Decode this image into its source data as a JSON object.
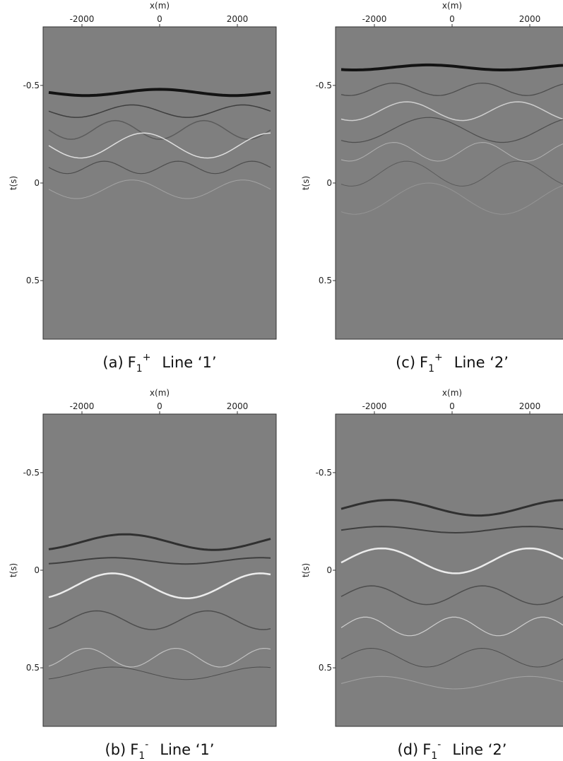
{
  "panels": [
    {
      "caption": {
        "label": "(a)",
        "symbol": "F",
        "subscript": "1",
        "superscript": "+",
        "line": "Line ‘1’"
      },
      "x_label": "x(m)",
      "y_label": "t(s)",
      "xlim": [
        -3000,
        3000
      ],
      "ylim": [
        -0.8,
        0.8
      ],
      "xticks": [
        -2000,
        0,
        2000
      ],
      "yticks": [
        -0.5,
        0,
        0.5
      ]
    },
    {
      "caption": {
        "label": "(c)",
        "symbol": "F",
        "subscript": "1",
        "superscript": "+",
        "line": "Line ‘2’"
      },
      "x_label": "x(m)",
      "y_label": "t(s)",
      "xlim": [
        -3000,
        3000
      ],
      "ylim": [
        -0.8,
        0.8
      ],
      "xticks": [
        -2000,
        0,
        2000
      ],
      "yticks": [
        -0.5,
        0,
        0.5
      ]
    },
    {
      "caption": {
        "label": "(b)",
        "symbol": "F",
        "subscript": "1",
        "superscript": "-",
        "line": "Line ‘1’"
      },
      "x_label": "x(m)",
      "y_label": "t(s)",
      "xlim": [
        -3000,
        3000
      ],
      "ylim": [
        -0.8,
        0.8
      ],
      "xticks": [
        -2000,
        0,
        2000
      ],
      "yticks": [
        -0.5,
        0,
        0.5
      ]
    },
    {
      "caption": {
        "label": "(d)",
        "symbol": "F",
        "subscript": "1",
        "superscript": "-",
        "line": "Line ‘2’"
      },
      "x_label": "x(m)",
      "y_label": "t(s)",
      "xlim": [
        -3000,
        3000
      ],
      "ylim": [
        -0.8,
        0.8
      ],
      "xticks": [
        -2000,
        0,
        2000
      ],
      "yticks": [
        -0.5,
        0,
        0.5
      ]
    }
  ]
}
